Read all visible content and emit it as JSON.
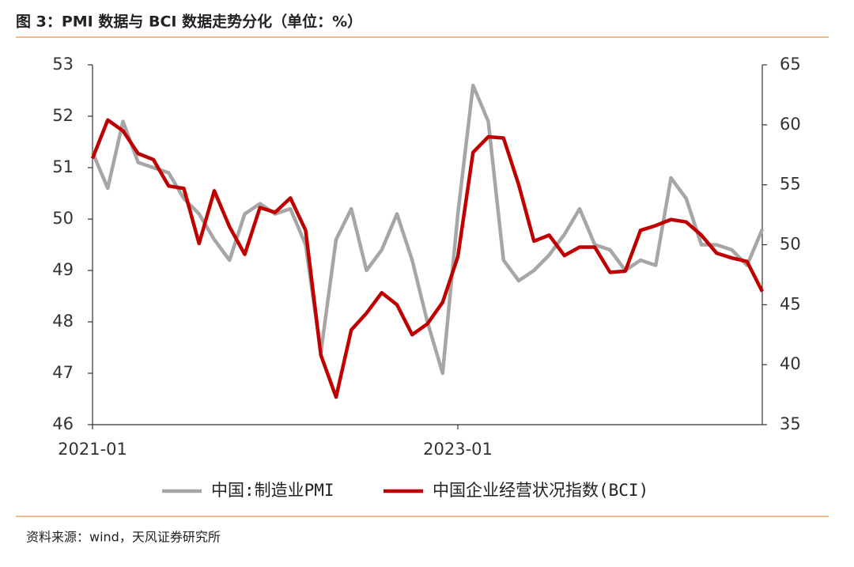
{
  "chart_data": {
    "type": "line",
    "title": "图 3：PMI 数据与 BCI 数据走势分化（单位：%）",
    "source": "资料来源：wind，天风证券研究所",
    "categories": [
      "2021-01",
      null,
      null,
      null,
      null,
      null,
      null,
      null,
      null,
      null,
      null,
      null,
      null,
      null,
      null,
      null,
      null,
      null,
      null,
      null,
      null,
      null,
      null,
      null,
      "2023-01",
      null,
      null,
      null,
      null,
      null,
      null,
      null,
      null,
      null,
      null,
      null,
      null,
      null,
      null,
      null,
      null,
      null,
      null,
      null,
      null
    ],
    "series": [
      {
        "name": "中国:制造业PMI",
        "color": "#a6a6a6",
        "axis": "y",
        "values": [
          51.3,
          50.6,
          51.9,
          51.1,
          51.0,
          50.9,
          50.4,
          50.1,
          49.6,
          49.2,
          50.1,
          50.3,
          50.1,
          50.2,
          49.5,
          47.4,
          49.6,
          50.2,
          49.0,
          49.4,
          50.1,
          49.2,
          48.0,
          47.0,
          50.1,
          52.6,
          51.9,
          49.2,
          48.8,
          49.0,
          49.3,
          49.7,
          50.2,
          49.5,
          49.4,
          49.0,
          49.2,
          49.1,
          50.8,
          50.4,
          49.5,
          49.5,
          49.4,
          49.1,
          49.8
        ]
      },
      {
        "name": "中国企业经营状况指数(BCI)",
        "color": "#c00000",
        "axis": "y2",
        "values": [
          57.2,
          60.4,
          59.5,
          57.6,
          57.1,
          54.9,
          54.7,
          50.1,
          54.5,
          51.5,
          49.2,
          53.1,
          52.7,
          53.9,
          51.2,
          40.8,
          37.3,
          42.9,
          44.3,
          46.0,
          45.0,
          42.5,
          43.4,
          45.2,
          49.0,
          57.7,
          59.0,
          58.9,
          55.0,
          50.3,
          50.8,
          49.1,
          49.8,
          49.8,
          47.7,
          47.8,
          51.2,
          51.6,
          52.1,
          51.9,
          50.8,
          49.3,
          48.9,
          48.6,
          46.1
        ]
      }
    ],
    "ylim": [
      46,
      53
    ],
    "yticks": [
      46,
      47,
      48,
      49,
      50,
      51,
      52,
      53
    ],
    "y2lim": [
      35,
      65
    ],
    "y2ticks": [
      35,
      40,
      45,
      50,
      55,
      60,
      65
    ],
    "grid": false
  }
}
